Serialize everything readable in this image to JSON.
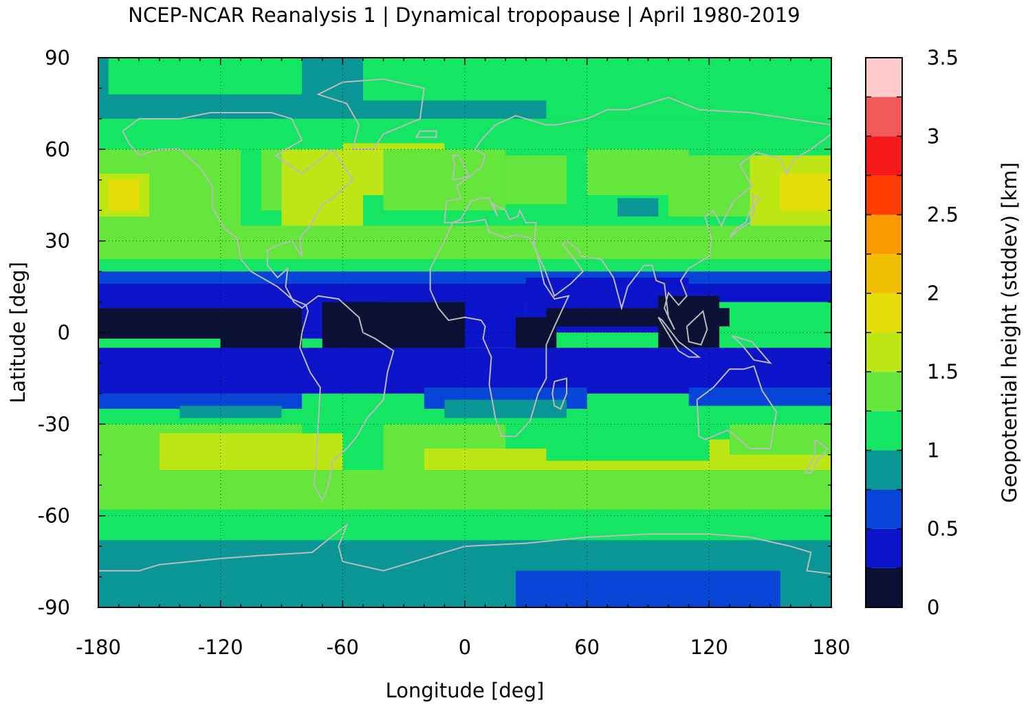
{
  "title": "NCEP-NCAR Reanalysis 1 | Dynamical tropopause | April 1980-2019",
  "chart_data": {
    "type": "heatmap",
    "xlabel": "Longitude [deg]",
    "ylabel": "Latitude [deg]",
    "xlim": [
      -180,
      180
    ],
    "ylim": [
      -90,
      90
    ],
    "xticks": [
      "-180",
      "-120",
      "-60",
      "0",
      "60",
      "120",
      "180"
    ],
    "yticks": [
      "90",
      "60",
      "30",
      "0",
      "-30",
      "-60",
      "-90"
    ],
    "grid": "dotted",
    "colorbar": {
      "label": "Geopotential height (stddev) [km]",
      "range": [
        0,
        3.5
      ],
      "step": 0.25,
      "ticks": [
        "0",
        "0.5",
        "1",
        "1.5",
        "2",
        "2.5",
        "3",
        "3.5"
      ],
      "colors": [
        "#0b1134",
        "#0b14c8",
        "#0745d6",
        "#0b9696",
        "#14e664",
        "#64e63c",
        "#bee614",
        "#e6dc0a",
        "#f0c000",
        "#fa9a00",
        "#ff3c00",
        "#f51919",
        "#f05a5a",
        "#ffcccc"
      ]
    },
    "latitude_band_profile": [
      {
        "lat": [
          70,
          90
        ],
        "value_range": [
          0.75,
          1.0
        ],
        "note_color": "#0b9696"
      },
      {
        "lat": [
          40,
          60
        ],
        "value_range": [
          1.25,
          1.75
        ]
      },
      {
        "lat": [
          20,
          30
        ],
        "value_range": [
          0.5,
          1.0
        ]
      },
      {
        "lat": [
          -10,
          10
        ],
        "value_range": [
          0.0,
          0.5
        ]
      },
      {
        "lat": [
          -55,
          -35
        ],
        "value_range": [
          1.25,
          1.75
        ]
      },
      {
        "lat": [
          -90,
          -70
        ],
        "value_range": [
          0.5,
          1.0
        ]
      }
    ],
    "overlay": "coastlines"
  }
}
